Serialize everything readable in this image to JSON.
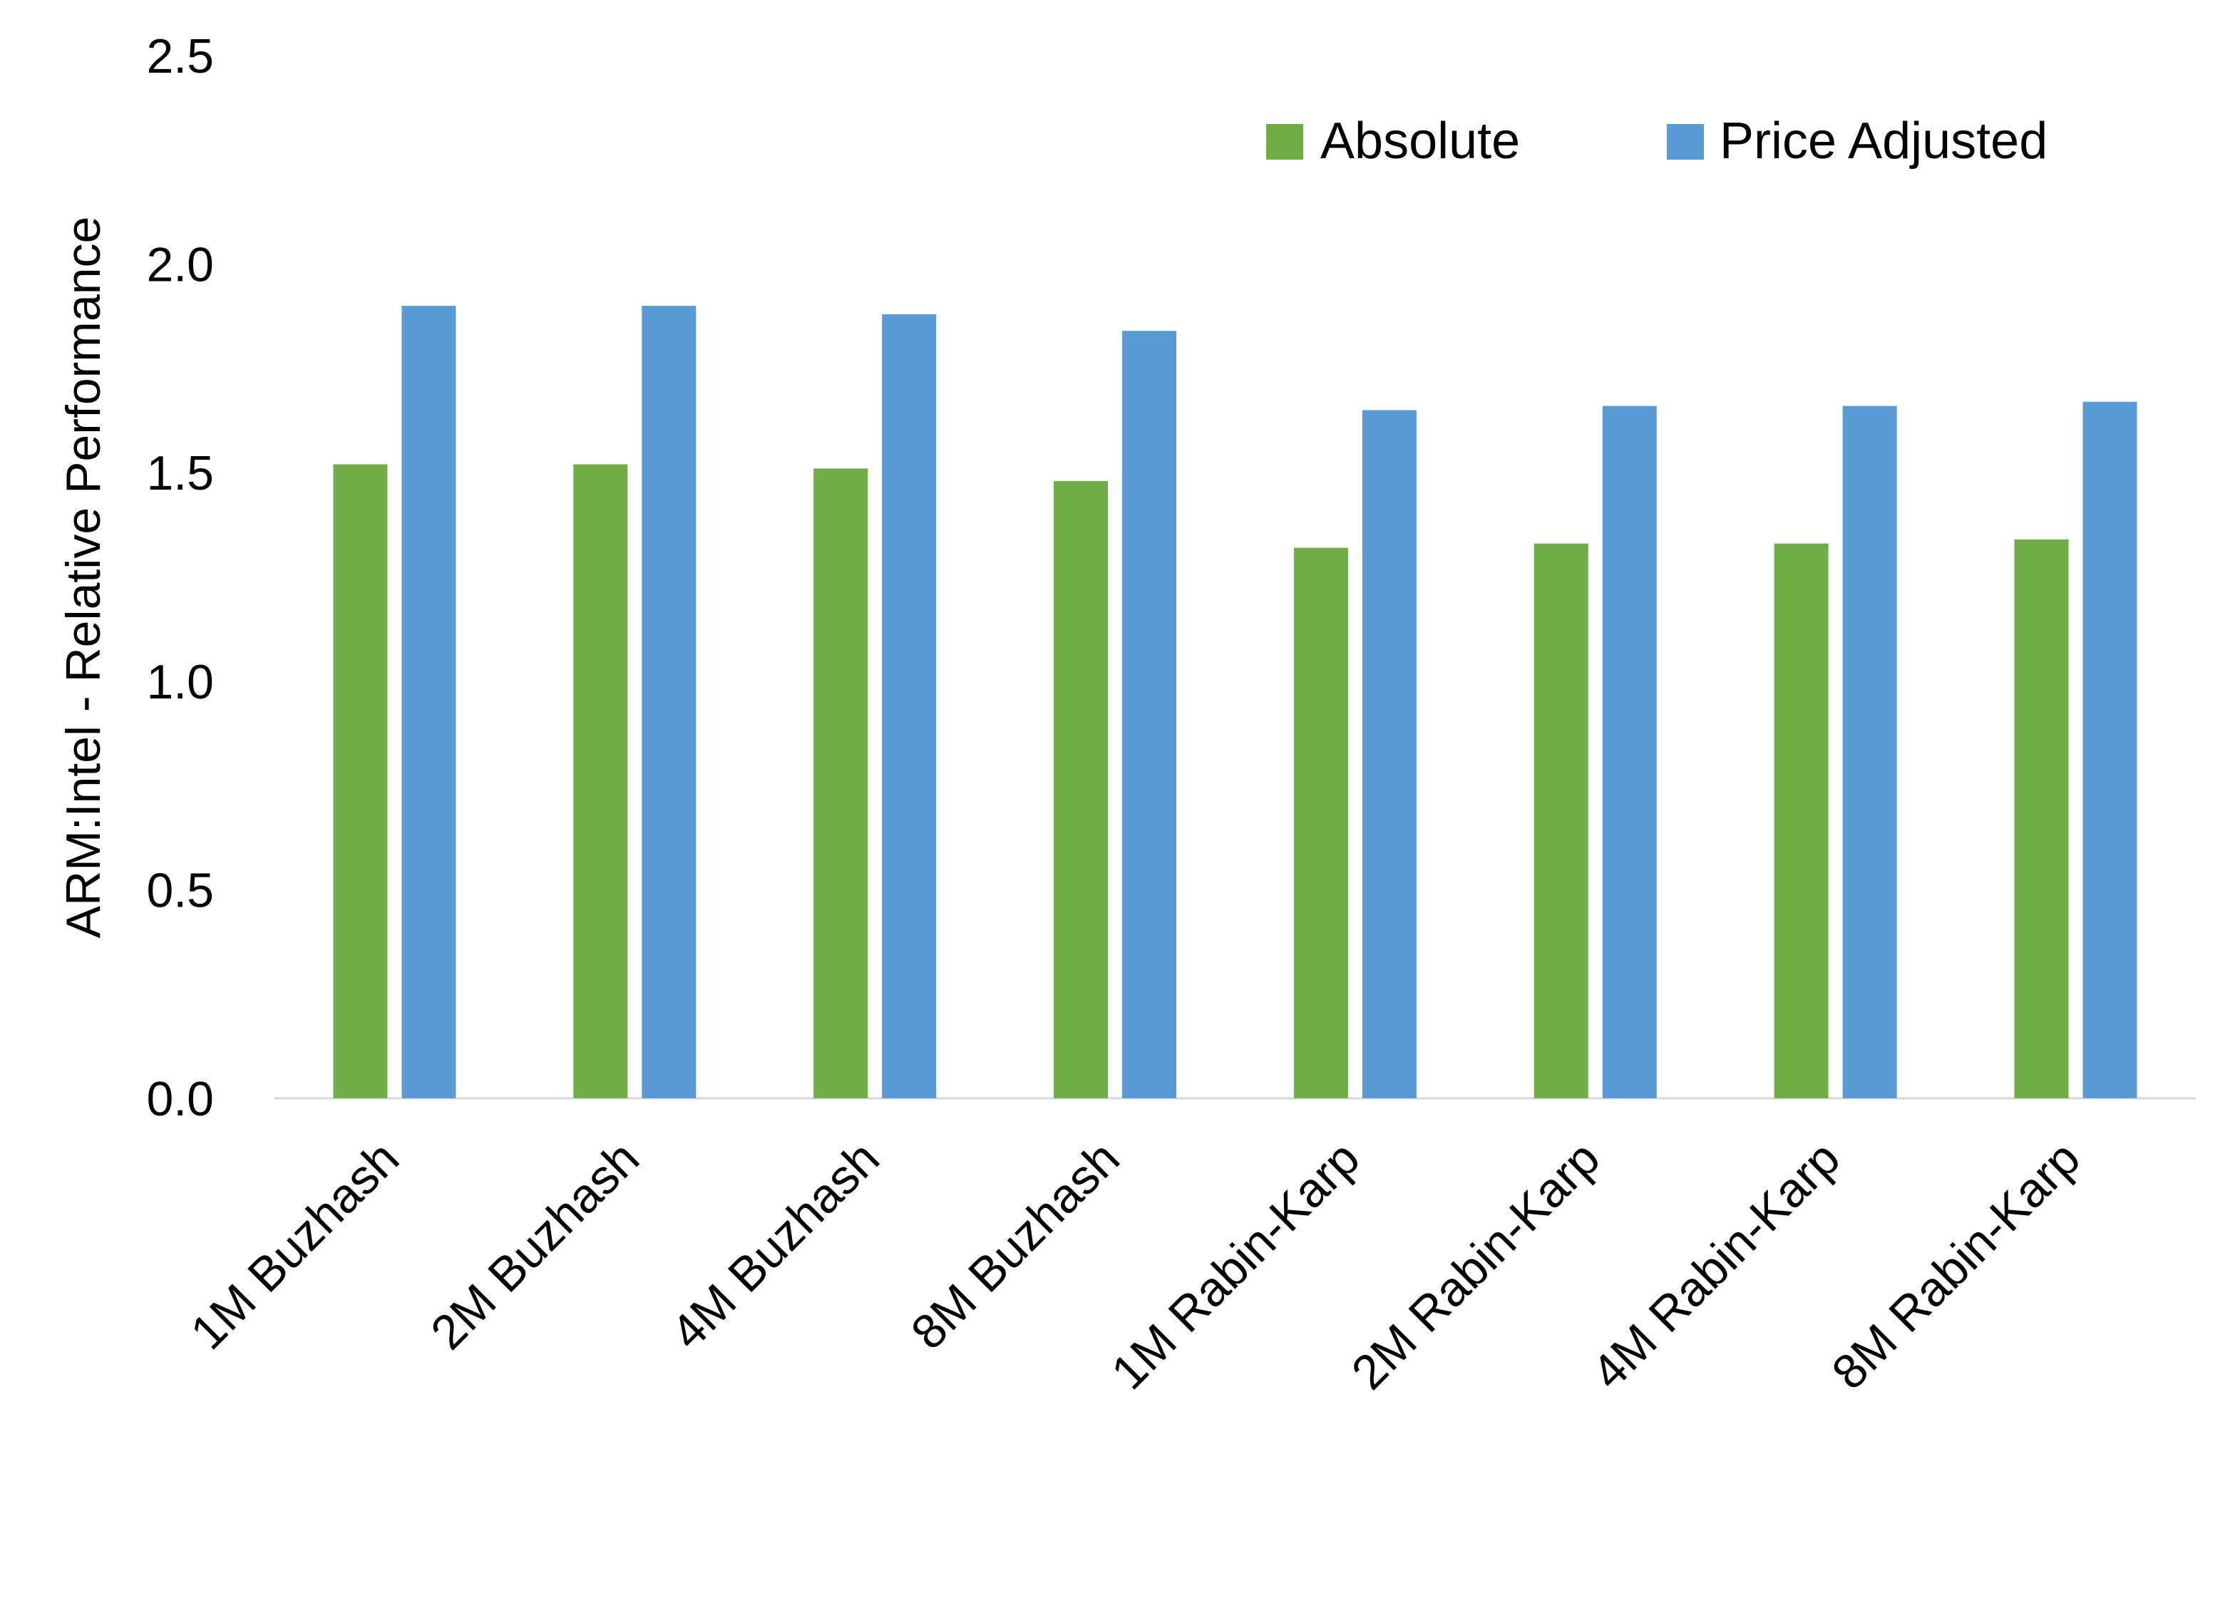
{
  "chart_data": {
    "type": "bar",
    "title": "",
    "xlabel": "",
    "ylabel": "ARM:Intel - Relative Performance",
    "ylim": [
      0,
      2.5
    ],
    "yticks": [
      "0.0",
      "0.5",
      "1.0",
      "1.5",
      "2.0",
      "2.5"
    ],
    "grid": false,
    "legend_position": "top-right",
    "categories": [
      "1M Buzhash",
      "2M Buzhash",
      "4M Buzhash",
      "8M Buzhash",
      "1M Rabin-Karp",
      "2M Rabin-Karp",
      "4M Rabin-Karp",
      "8M Rabin-Karp"
    ],
    "series": [
      {
        "name": "Absolute",
        "color": "#70AD47",
        "values": [
          1.52,
          1.52,
          1.51,
          1.48,
          1.32,
          1.33,
          1.33,
          1.34
        ]
      },
      {
        "name": "Price Adjusted",
        "color": "#5B9BD5",
        "values": [
          1.9,
          1.9,
          1.88,
          1.84,
          1.65,
          1.66,
          1.66,
          1.67
        ]
      }
    ]
  }
}
